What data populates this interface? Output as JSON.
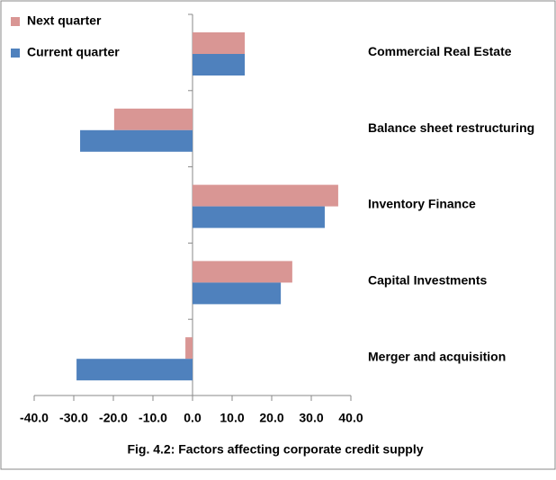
{
  "chart_data": {
    "type": "hbar",
    "title": "Fig. 4.2: Factors affecting corporate credit supply",
    "categories": [
      "Commercial  Real Estate",
      "Balance sheet restructuring",
      "Inventory Finance",
      "Capital Investments",
      "Merger and acquisition"
    ],
    "series": [
      {
        "name": "Next quarter",
        "color": "#d99694",
        "values": [
          13.2,
          -19.8,
          36.8,
          25.2,
          -1.8
        ]
      },
      {
        "name": "Current quarter",
        "color": "#4f81bd",
        "values": [
          13.2,
          -28.4,
          33.4,
          22.3,
          -29.3
        ]
      }
    ],
    "xlim": [
      -40,
      40
    ],
    "xticks": [
      {
        "value": -40,
        "label": "-40.0"
      },
      {
        "value": -30,
        "label": "-30.0"
      },
      {
        "value": -20,
        "label": "-20.0"
      },
      {
        "value": -10,
        "label": "-10.0"
      },
      {
        "value": 0,
        "label": "0.0"
      },
      {
        "value": 10,
        "label": "10.0"
      },
      {
        "value": 20,
        "label": "20.0"
      },
      {
        "value": 30,
        "label": "30.0"
      },
      {
        "value": 40,
        "label": "40.0"
      }
    ],
    "legend": "top-left"
  }
}
